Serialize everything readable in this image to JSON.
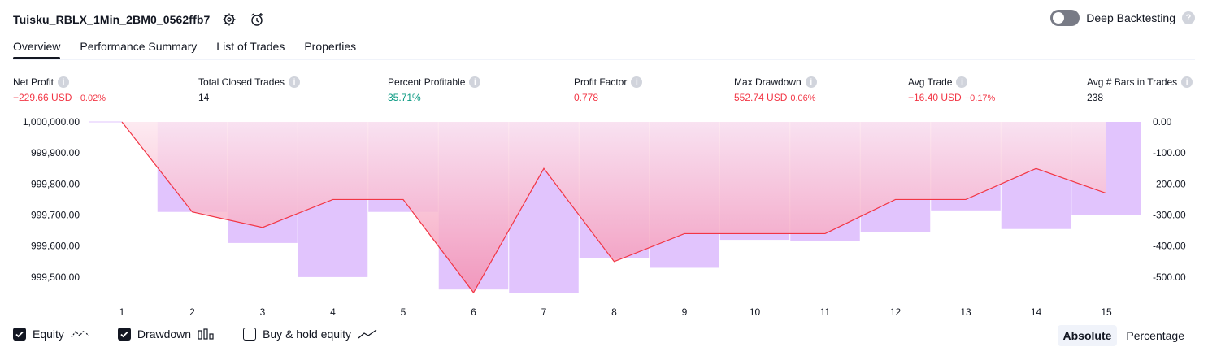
{
  "header": {
    "strategy_title": "Tuisku_RBLX_1Min_2BM0_0562ffb7",
    "deep_backtesting_label": "Deep Backtesting",
    "deep_backtesting_enabled": false
  },
  "tabs": [
    {
      "label": "Overview",
      "active": true
    },
    {
      "label": "Performance Summary",
      "active": false
    },
    {
      "label": "List of Trades",
      "active": false
    },
    {
      "label": "Properties",
      "active": false
    }
  ],
  "metrics": [
    {
      "label": "Net Profit",
      "value": "−229.66 USD",
      "pct": "−0.02%",
      "tone": "neg"
    },
    {
      "label": "Total Closed Trades",
      "value": "14",
      "pct": "",
      "tone": "neutral"
    },
    {
      "label": "Percent Profitable",
      "value": "35.71%",
      "pct": "",
      "tone": "pos"
    },
    {
      "label": "Profit Factor",
      "value": "0.778",
      "pct": "",
      "tone": "neg"
    },
    {
      "label": "Max Drawdown",
      "value": "552.74 USD",
      "pct": "0.06%",
      "tone": "neg"
    },
    {
      "label": "Avg Trade",
      "value": "−16.40 USD",
      "pct": "−0.17%",
      "tone": "neg"
    },
    {
      "label": "Avg # Bars in Trades",
      "value": "238",
      "pct": "",
      "tone": "neutral"
    }
  ],
  "chart_data": {
    "type": "bar",
    "x": [
      1,
      2,
      3,
      4,
      5,
      6,
      7,
      8,
      9,
      10,
      11,
      12,
      13,
      14,
      15
    ],
    "equity": [
      1000000,
      999710,
      999660,
      999750,
      999750,
      999450,
      999850,
      999550,
      999640,
      999640,
      999640,
      999750,
      999750,
      999850,
      999770
    ],
    "drawdown": [
      0,
      -290,
      -390,
      -500,
      -290,
      -540,
      -550,
      -440,
      -470,
      -380,
      -385,
      -355,
      -285,
      -345,
      -300
    ],
    "left_axis": {
      "ticks": [
        "1,000,000.00",
        "999,900.00",
        "999,800.00",
        "999,700.00",
        "999,600.00",
        "999,500.00"
      ],
      "range": [
        999450,
        1000000
      ]
    },
    "right_axis": {
      "ticks": [
        "0.00",
        "-100.00",
        "-200.00",
        "-300.00",
        "-400.00",
        "-500.00"
      ],
      "range": [
        -550,
        0
      ]
    },
    "colors": {
      "equity_line": "#f23645",
      "drawdown_bar": "#e1c4fd",
      "fill_top": "#fce4ec",
      "fill_bottom": "#f8bbd0"
    }
  },
  "legend": {
    "equity": "Equity",
    "drawdown": "Drawdown",
    "buy_hold": "Buy & hold equity",
    "equity_checked": true,
    "drawdown_checked": true,
    "buy_hold_checked": false
  },
  "modes": {
    "absolute": "Absolute",
    "percentage": "Percentage",
    "selected": "Absolute"
  }
}
